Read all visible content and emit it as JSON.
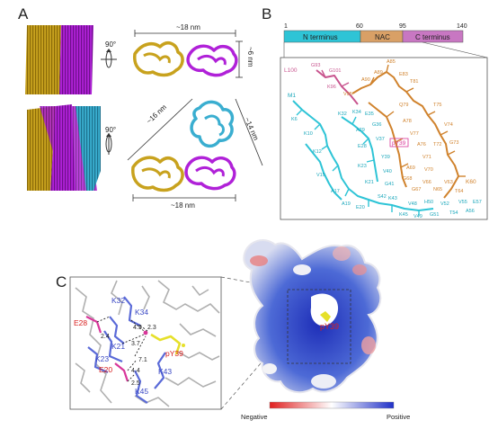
{
  "panels": {
    "a": "A",
    "b": "B",
    "c": "C"
  },
  "panel_a": {
    "rotation_top": "90°",
    "rotation_bottom": "90°",
    "dim_top_width": "~18 nm",
    "dim_top_height": "~6 nm",
    "dim_bottom_left": "~16 nm",
    "dim_bottom_right": "~14 nm",
    "dim_bottom_width": "~18 nm"
  },
  "panel_b": {
    "ticks": [
      "1",
      "60",
      "95",
      "140"
    ],
    "segments": [
      {
        "label": "N terminus",
        "color": "#2ec4d6"
      },
      {
        "label": "NAC",
        "color": "#d9a066"
      },
      {
        "label": "C terminus",
        "color": "#c877c2"
      }
    ],
    "residues_magenta": [
      "L100",
      "G93",
      "K96",
      "G101"
    ],
    "residues_cyan": [
      "M1",
      "K6",
      "K10",
      "K12",
      "V15",
      "A17",
      "A19",
      "E20",
      "K21",
      "K23",
      "E28",
      "A29",
      "K32",
      "K34",
      "E35",
      "G36",
      "V37",
      "Y39",
      "V40",
      "G41",
      "S42",
      "K43",
      "K45",
      "V48",
      "V49",
      "H50",
      "G51",
      "V52",
      "T54",
      "V55",
      "A56",
      "E57"
    ],
    "residues_orange": [
      "V95",
      "A90",
      "A85",
      "T81",
      "T75",
      "V74",
      "G73",
      "V71",
      "V70",
      "T72",
      "Q79",
      "E83",
      "A89",
      "K60",
      "T64",
      "V63",
      "N65",
      "V66",
      "G67",
      "G68",
      "A69",
      "V77",
      "A78",
      "A76"
    ],
    "highlight": "pY39"
  },
  "panel_c": {
    "residues_blue": [
      "K34",
      "K32",
      "K21",
      "K23",
      "K43",
      "K45"
    ],
    "residues_red": [
      "E28",
      "E20"
    ],
    "residue_yellow": "pY39",
    "distances": [
      "2.4",
      "4.5",
      "2.3",
      "3.7",
      "7.1",
      "4.4",
      "2.5"
    ],
    "surface_label": "pY39",
    "colorbar_negative": "Negative",
    "colorbar_positive": "Positive",
    "colors": {
      "negative": "#e02020",
      "neutral": "#ffffff",
      "positive": "#2030c8",
      "lys": "#5a6ad8",
      "glu": "#d8369a",
      "ptyr": "#e6e02a"
    }
  }
}
